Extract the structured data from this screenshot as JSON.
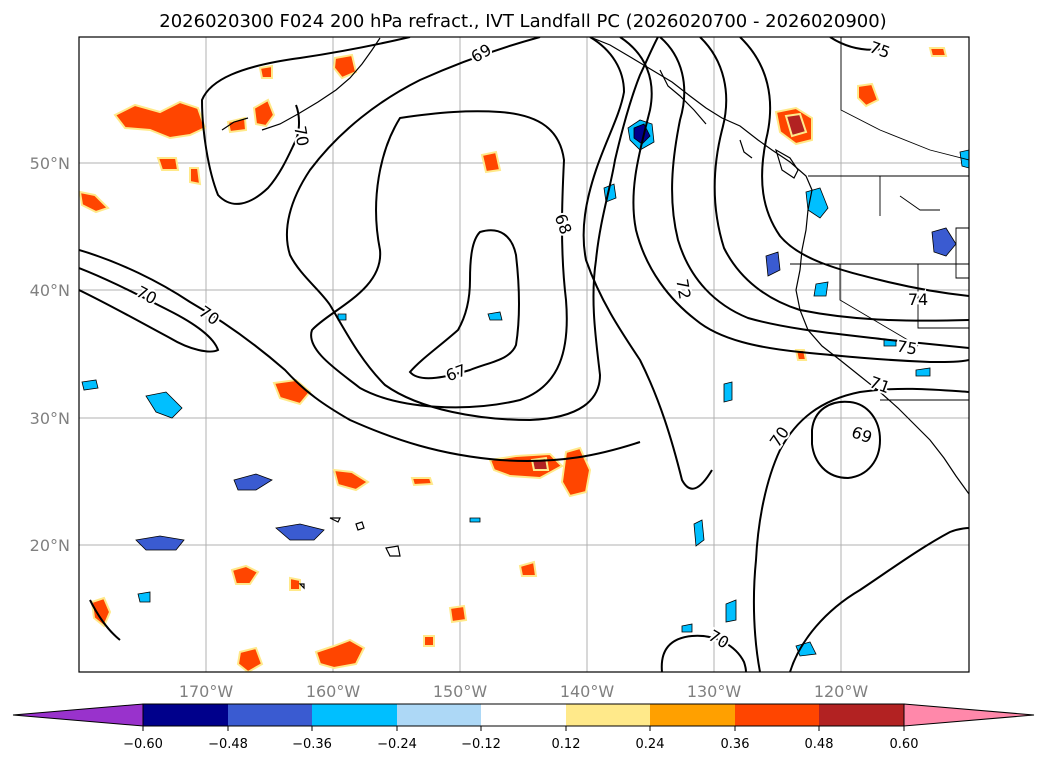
{
  "title": "2026020300 F024 200 hPa refract., IVT Landfall PC (2026020700 - 2026020900)",
  "lat_labels": [
    "50°N",
    "40°N",
    "30°N",
    "20°N"
  ],
  "lon_labels": [
    "170°W",
    "160°W",
    "150°W",
    "140°W",
    "130°W",
    "120°W"
  ],
  "contour_labels": [
    "69",
    "70",
    "68",
    "70",
    "70",
    "67",
    "72",
    "74",
    "75",
    "71",
    "70",
    "69",
    "70",
    "75"
  ],
  "colorbar": {
    "ticks": [
      "−0.60",
      "−0.48",
      "−0.36",
      "−0.24",
      "−0.12",
      "0.12",
      "0.24",
      "0.36",
      "0.48",
      "0.60"
    ],
    "colors": [
      "#9932cc",
      "#00008b",
      "#3a5bd1",
      "#00bfff",
      "#add8f6",
      "#ffffff",
      "#ffe98a",
      "#ffa000",
      "#ff4500",
      "#b22222",
      "#ff88aa"
    ]
  },
  "chart_data": {
    "type": "map",
    "title": "2026020300 F024 200 hPa refract., IVT Landfall PC (2026020700 - 2026020900)",
    "lon_range": [
      -180,
      -110
    ],
    "lat_range": [
      10,
      60
    ],
    "contour_field": "200 hPa refractivity",
    "contour_levels": [
      67,
      68,
      69,
      70,
      71,
      72,
      74,
      75
    ],
    "fill_field": "IVT Landfall PC",
    "fill_levels": [
      -0.6,
      -0.48,
      -0.36,
      -0.24,
      -0.12,
      0.12,
      0.24,
      0.36,
      0.48,
      0.6
    ]
  }
}
